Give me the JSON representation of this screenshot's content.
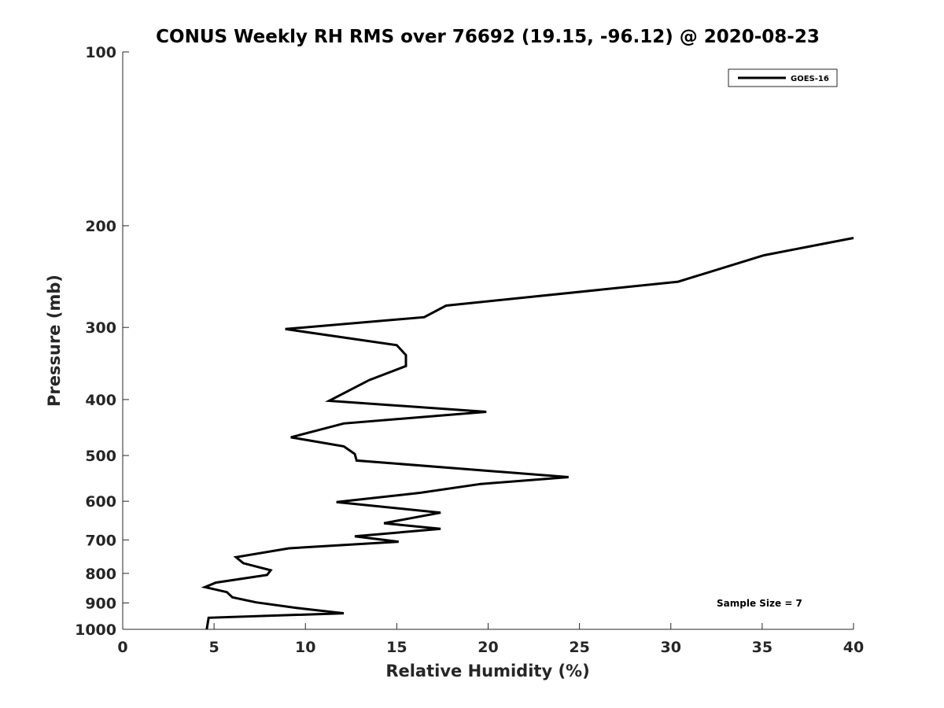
{
  "chart_data": {
    "type": "line",
    "title": "CONUS Weekly RH RMS over 76692 (19.15, -96.12) @ 2020-08-23",
    "xlabel": "Relative Humidity (%)",
    "ylabel": "Pressure (mb)",
    "xlim": [
      0,
      40
    ],
    "ylim": [
      100,
      1000
    ],
    "yscale": "log",
    "yreverse": true,
    "x_ticks": [
      "0",
      "5",
      "10",
      "15",
      "20",
      "25",
      "30",
      "35",
      "40"
    ],
    "y_ticks": [
      "100",
      "200",
      "300",
      "400",
      "500",
      "600",
      "700",
      "800",
      "900",
      "1000"
    ],
    "grid": false,
    "legend_position": "top-right",
    "annotation": "Sample Size = 7",
    "series": [
      {
        "name": "GOES-16",
        "color": "#000000",
        "points": [
          [
            40.0,
            210
          ],
          [
            35.1,
            225
          ],
          [
            30.4,
            250
          ],
          [
            17.7,
            275
          ],
          [
            16.5,
            288
          ],
          [
            8.9,
            302
          ],
          [
            15.0,
            322
          ],
          [
            15.5,
            335
          ],
          [
            15.5,
            350
          ],
          [
            13.5,
            370
          ],
          [
            11.3,
            402
          ],
          [
            19.9,
            420
          ],
          [
            12.1,
            440
          ],
          [
            9.2,
            465
          ],
          [
            12.1,
            482
          ],
          [
            12.7,
            497
          ],
          [
            12.8,
            510
          ],
          [
            24.4,
            545
          ],
          [
            19.6,
            560
          ],
          [
            16.3,
            580
          ],
          [
            11.7,
            602
          ],
          [
            17.4,
            628
          ],
          [
            14.3,
            655
          ],
          [
            17.4,
            670
          ],
          [
            12.7,
            690
          ],
          [
            15.1,
            705
          ],
          [
            9.1,
            724
          ],
          [
            6.2,
            750
          ],
          [
            6.6,
            768
          ],
          [
            8.1,
            790
          ],
          [
            7.9,
            805
          ],
          [
            5.1,
            830
          ],
          [
            4.5,
            845
          ],
          [
            5.7,
            862
          ],
          [
            6.0,
            880
          ],
          [
            7.3,
            898
          ],
          [
            9.5,
            918
          ],
          [
            12.1,
            938
          ],
          [
            4.7,
            955
          ],
          [
            4.6,
            1000
          ]
        ]
      }
    ]
  }
}
